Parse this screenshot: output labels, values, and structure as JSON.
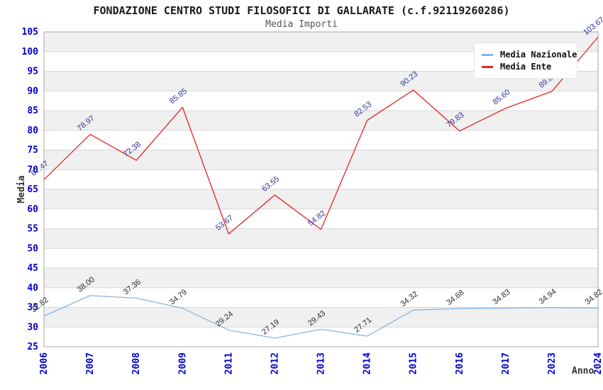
{
  "chart_data": {
    "type": "line",
    "title": "FONDAZIONE CENTRO STUDI FILOSOFICI DI GALLARATE (c.f.92119260286)",
    "subtitle": "Media Importi",
    "xlabel": "Anno",
    "ylabel": "Media",
    "ylim": [
      25,
      105
    ],
    "ytick_step": 5,
    "grid": "horizontal-bands",
    "legend_position": "top-right",
    "band_colors": [
      "#F0F0F0",
      "#FFFFFF"
    ],
    "gridline_color": "#D8D8D8",
    "plot_border_color": "#AAAAAA",
    "axis_tick_color": "#0000CC",
    "categories": [
      "2006",
      "2007",
      "2008",
      "2009",
      "2011",
      "2012",
      "2013",
      "2014",
      "2015",
      "2016",
      "2017",
      "2023",
      "2024"
    ],
    "series": [
      {
        "name": "Media Nazionale",
        "color": "#85B5E7",
        "label_color": "#2B2B2B",
        "values": [
          32.82,
          38.0,
          37.36,
          34.79,
          29.24,
          27.19,
          29.43,
          27.71,
          34.32,
          34.68,
          34.83,
          34.94,
          34.82
        ]
      },
      {
        "name": "Media Ente",
        "color": "#E62323",
        "label_color": "#333399",
        "values": [
          67.47,
          78.97,
          72.38,
          85.85,
          53.67,
          63.55,
          54.82,
          82.53,
          90.23,
          79.83,
          85.6,
          89.89,
          103.67
        ]
      }
    ]
  }
}
